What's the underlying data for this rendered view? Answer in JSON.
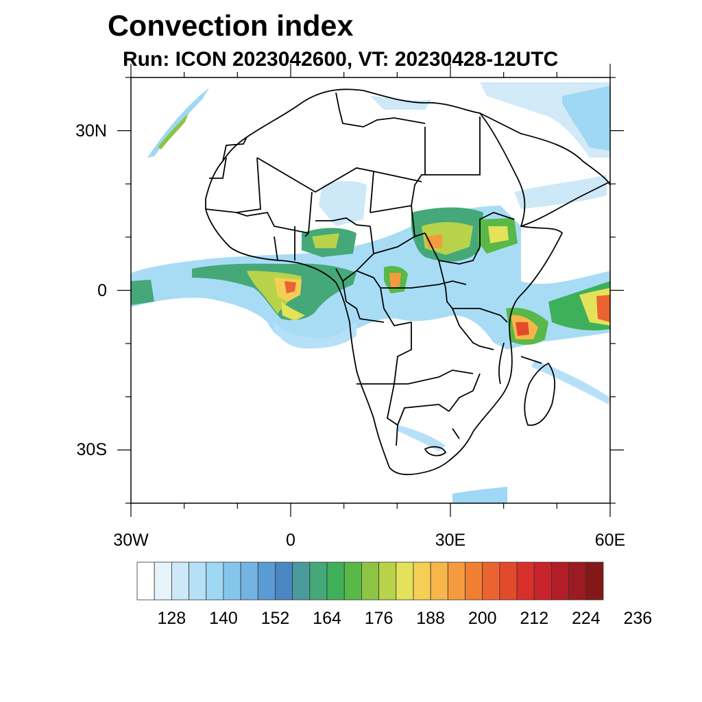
{
  "title": "Convection index",
  "subtitle": "Run: ICON 2023042600,  VT: 20230428-12UTC",
  "map": {
    "lat_labels": [
      "30N",
      "0",
      "30S"
    ],
    "lat_values": [
      30,
      0,
      -30
    ],
    "lon_labels": [
      "30W",
      "0",
      "30E",
      "60E"
    ],
    "lon_values": [
      -30,
      0,
      30,
      60
    ],
    "lon_range": [
      -30,
      60
    ],
    "lat_range": [
      -40,
      40
    ]
  },
  "colorbar": {
    "labels": [
      "128",
      "140",
      "152",
      "164",
      "176",
      "188",
      "200",
      "212",
      "224",
      "236"
    ],
    "colors": [
      "#ffffff",
      "#e8f4fb",
      "#cde8f6",
      "#b6e0f7",
      "#9ed8f4",
      "#86c6ec",
      "#74b4e3",
      "#5a9bd3",
      "#4a86c1",
      "#4a9b9b",
      "#45a878",
      "#3fb05a",
      "#58b848",
      "#8ec445",
      "#b8d34a",
      "#e4e25a",
      "#f5cf55",
      "#f7b54a",
      "#f59a3f",
      "#f07e33",
      "#ea6330",
      "#e24a2c",
      "#d8302b",
      "#c9232b",
      "#b31d27",
      "#9c1a22",
      "#841818"
    ]
  }
}
